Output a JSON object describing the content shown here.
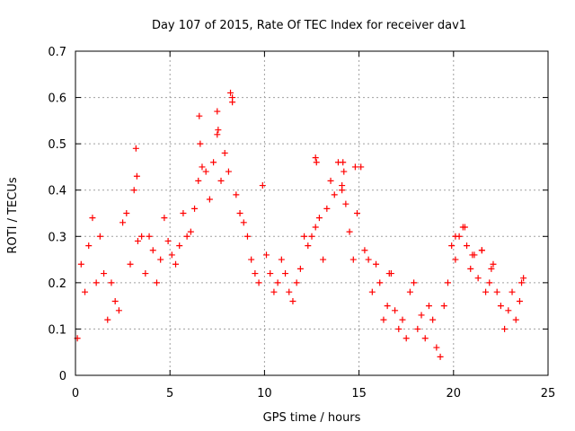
{
  "chart_data": {
    "type": "scatter",
    "title": "Day 107 of 2015, Rate Of TEC Index for receiver dav1",
    "xlabel": "GPS time / hours",
    "ylabel": "ROTI / TECUs",
    "xlim": [
      0,
      25
    ],
    "ylim": [
      0,
      0.7
    ],
    "x_ticks": [
      0,
      5,
      10,
      15,
      20,
      25
    ],
    "x_tick_labels": [
      "0",
      "5",
      "10",
      "15",
      "20",
      "25"
    ],
    "y_ticks": [
      0,
      0.1,
      0.2,
      0.3,
      0.4,
      0.5,
      0.6,
      0.7
    ],
    "y_tick_labels": [
      "0",
      "0.1",
      "0.2",
      "0.3",
      "0.4",
      "0.5",
      "0.6",
      "0.7"
    ],
    "grid": true,
    "marker": "+",
    "series": [
      {
        "name": "ROTI",
        "color": "#ff0000",
        "x": [
          0.1,
          0.3,
          0.5,
          0.7,
          0.9,
          1.1,
          1.3,
          1.5,
          1.7,
          1.9,
          2.1,
          2.3,
          2.5,
          2.7,
          2.9,
          3.1,
          3.3,
          3.5,
          3.7,
          3.9,
          4.1,
          4.3,
          4.5,
          4.7,
          4.9,
          5.1,
          5.3,
          5.5,
          5.7,
          5.9,
          6.1,
          6.3,
          6.5,
          6.7,
          6.9,
          7.1,
          7.3,
          7.5,
          7.7,
          7.9,
          8.1,
          8.3,
          8.5,
          8.7,
          8.9,
          9.1,
          9.3,
          9.5,
          9.7,
          9.9,
          10.1,
          10.3,
          10.5,
          10.7,
          10.9,
          11.1,
          11.3,
          11.5,
          11.7,
          11.9,
          12.1,
          12.3,
          12.5,
          12.7,
          12.9,
          13.1,
          13.3,
          13.5,
          13.7,
          13.9,
          14.1,
          14.3,
          14.5,
          14.7,
          14.9,
          15.1,
          15.3,
          15.5,
          15.7,
          15.9,
          16.1,
          16.3,
          16.5,
          16.7,
          16.9,
          17.1,
          17.3,
          17.5,
          17.7,
          17.9,
          18.1,
          18.3,
          18.5,
          18.7,
          18.9,
          19.1,
          19.3,
          19.5,
          19.7,
          19.9,
          20.1,
          20.3,
          20.5,
          20.7,
          20.9,
          21.1,
          21.3,
          21.5,
          21.7,
          21.9,
          22.1,
          22.3,
          22.5,
          22.7,
          22.9,
          23.1,
          23.3,
          23.5,
          23.7,
          3.2,
          3.25,
          6.55,
          6.6,
          7.5,
          7.55,
          8.2,
          8.3,
          12.7,
          12.75,
          14.15,
          14.2,
          14.1,
          14.8,
          16.6,
          20.1,
          20.6,
          21.0,
          21.5,
          22.0,
          23.6
        ],
        "y": [
          0.08,
          0.24,
          0.18,
          0.28,
          0.34,
          0.2,
          0.3,
          0.22,
          0.12,
          0.2,
          0.16,
          0.14,
          0.33,
          0.35,
          0.24,
          0.4,
          0.29,
          0.3,
          0.22,
          0.3,
          0.27,
          0.2,
          0.25,
          0.34,
          0.29,
          0.26,
          0.24,
          0.28,
          0.35,
          0.3,
          0.31,
          0.36,
          0.42,
          0.45,
          0.44,
          0.38,
          0.46,
          0.52,
          0.42,
          0.48,
          0.44,
          0.6,
          0.39,
          0.35,
          0.33,
          0.3,
          0.25,
          0.22,
          0.2,
          0.41,
          0.26,
          0.22,
          0.18,
          0.2,
          0.25,
          0.22,
          0.18,
          0.16,
          0.2,
          0.23,
          0.3,
          0.28,
          0.3,
          0.32,
          0.34,
          0.25,
          0.36,
          0.42,
          0.39,
          0.46,
          0.41,
          0.37,
          0.31,
          0.25,
          0.35,
          0.45,
          0.27,
          0.25,
          0.18,
          0.24,
          0.2,
          0.12,
          0.15,
          0.22,
          0.14,
          0.1,
          0.12,
          0.08,
          0.18,
          0.2,
          0.1,
          0.13,
          0.08,
          0.15,
          0.12,
          0.06,
          0.04,
          0.15,
          0.2,
          0.28,
          0.25,
          0.3,
          0.32,
          0.28,
          0.23,
          0.26,
          0.21,
          0.27,
          0.18,
          0.2,
          0.24,
          0.18,
          0.15,
          0.1,
          0.14,
          0.18,
          0.12,
          0.16,
          0.21,
          0.49,
          0.43,
          0.56,
          0.5,
          0.57,
          0.53,
          0.61,
          0.59,
          0.47,
          0.46,
          0.46,
          0.44,
          0.4,
          0.45,
          0.22,
          0.3,
          0.32,
          0.26,
          0.27,
          0.23,
          0.2
        ]
      }
    ]
  }
}
